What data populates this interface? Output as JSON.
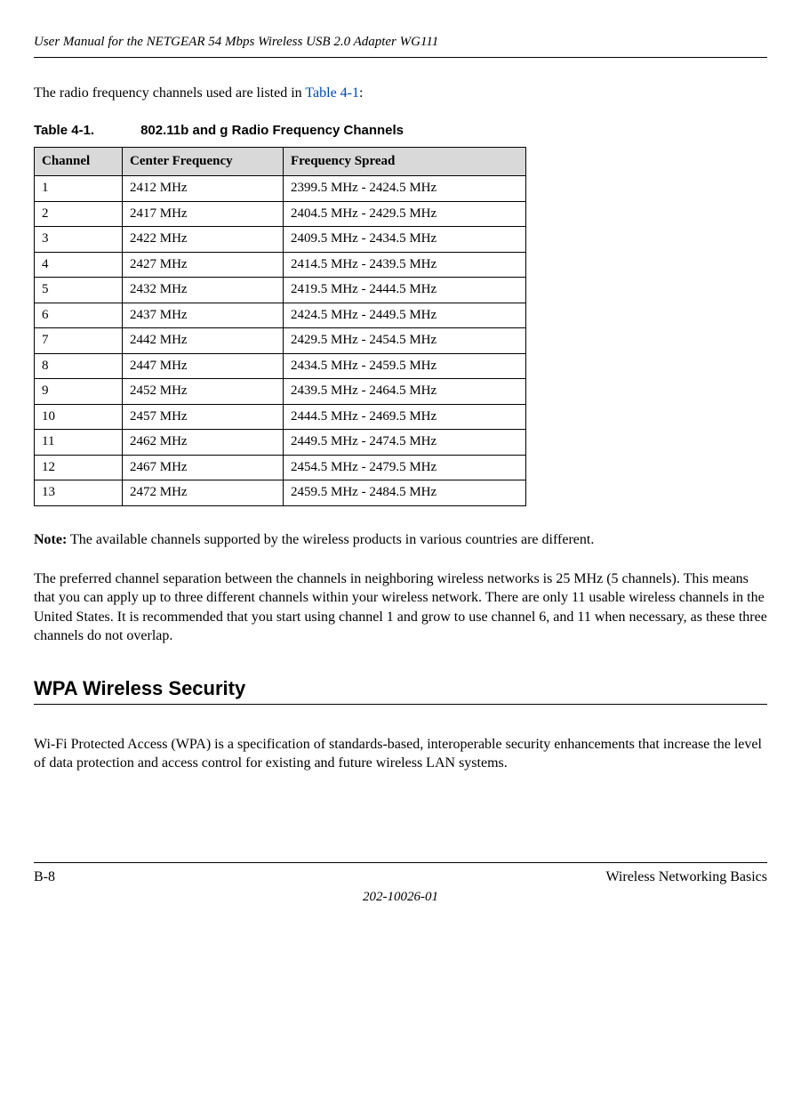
{
  "header": {
    "manual_title": "User Manual for the NETGEAR 54 Mbps Wireless USB 2.0 Adapter WG111"
  },
  "intro": {
    "text_before": "The radio frequency channels used are listed in ",
    "xref": "Table 4-1",
    "text_after": ":"
  },
  "table": {
    "caption_num": "Table 4-1.",
    "caption_title": "802.11b and g Radio Frequency Channels",
    "columns": [
      "Channel",
      "Center Frequency",
      "Frequency Spread"
    ],
    "rows": [
      [
        "1",
        "2412 MHz",
        "2399.5 MHz - 2424.5 MHz"
      ],
      [
        "2",
        "2417 MHz",
        "2404.5 MHz - 2429.5 MHz"
      ],
      [
        "3",
        "2422 MHz",
        "2409.5 MHz - 2434.5 MHz"
      ],
      [
        "4",
        "2427 MHz",
        "2414.5 MHz - 2439.5 MHz"
      ],
      [
        "5",
        "2432 MHz",
        "2419.5 MHz - 2444.5 MHz"
      ],
      [
        "6",
        "2437 MHz",
        "2424.5 MHz - 2449.5 MHz"
      ],
      [
        "7",
        "2442 MHz",
        "2429.5 MHz - 2454.5 MHz"
      ],
      [
        "8",
        "2447 MHz",
        "2434.5 MHz - 2459.5 MHz"
      ],
      [
        "9",
        "2452 MHz",
        "2439.5 MHz - 2464.5 MHz"
      ],
      [
        "10",
        "2457 MHz",
        "2444.5 MHz - 2469.5 MHz"
      ],
      [
        "11",
        "2462 MHz",
        "2449.5 MHz - 2474.5 MHz"
      ],
      [
        "12",
        "2467 MHz",
        "2454.5 MHz - 2479.5 MHz"
      ],
      [
        "13",
        "2472 MHz",
        "2459.5 MHz - 2484.5 MHz"
      ]
    ]
  },
  "note": {
    "label": "Note:",
    "text": " The available channels supported by the wireless products in various countries are different."
  },
  "body": {
    "para": "The preferred channel separation between the channels in neighboring wireless networks is 25 MHz (5 channels). This means that you can apply up to three different channels within your wireless network. There are only 11 usable wireless channels in the United States. It is recommended that you start using channel 1 and grow to use channel 6, and 11 when necessary, as these three channels do not overlap."
  },
  "section": {
    "heading": "WPA Wireless Security",
    "para": "Wi-Fi Protected Access (WPA) is a specification of standards-based, interoperable security enhancements that increase the level of data protection and access control for existing and future wireless LAN systems."
  },
  "footer": {
    "left": "B-8",
    "right": "Wireless Networking Basics",
    "center": "202-10026-01"
  }
}
